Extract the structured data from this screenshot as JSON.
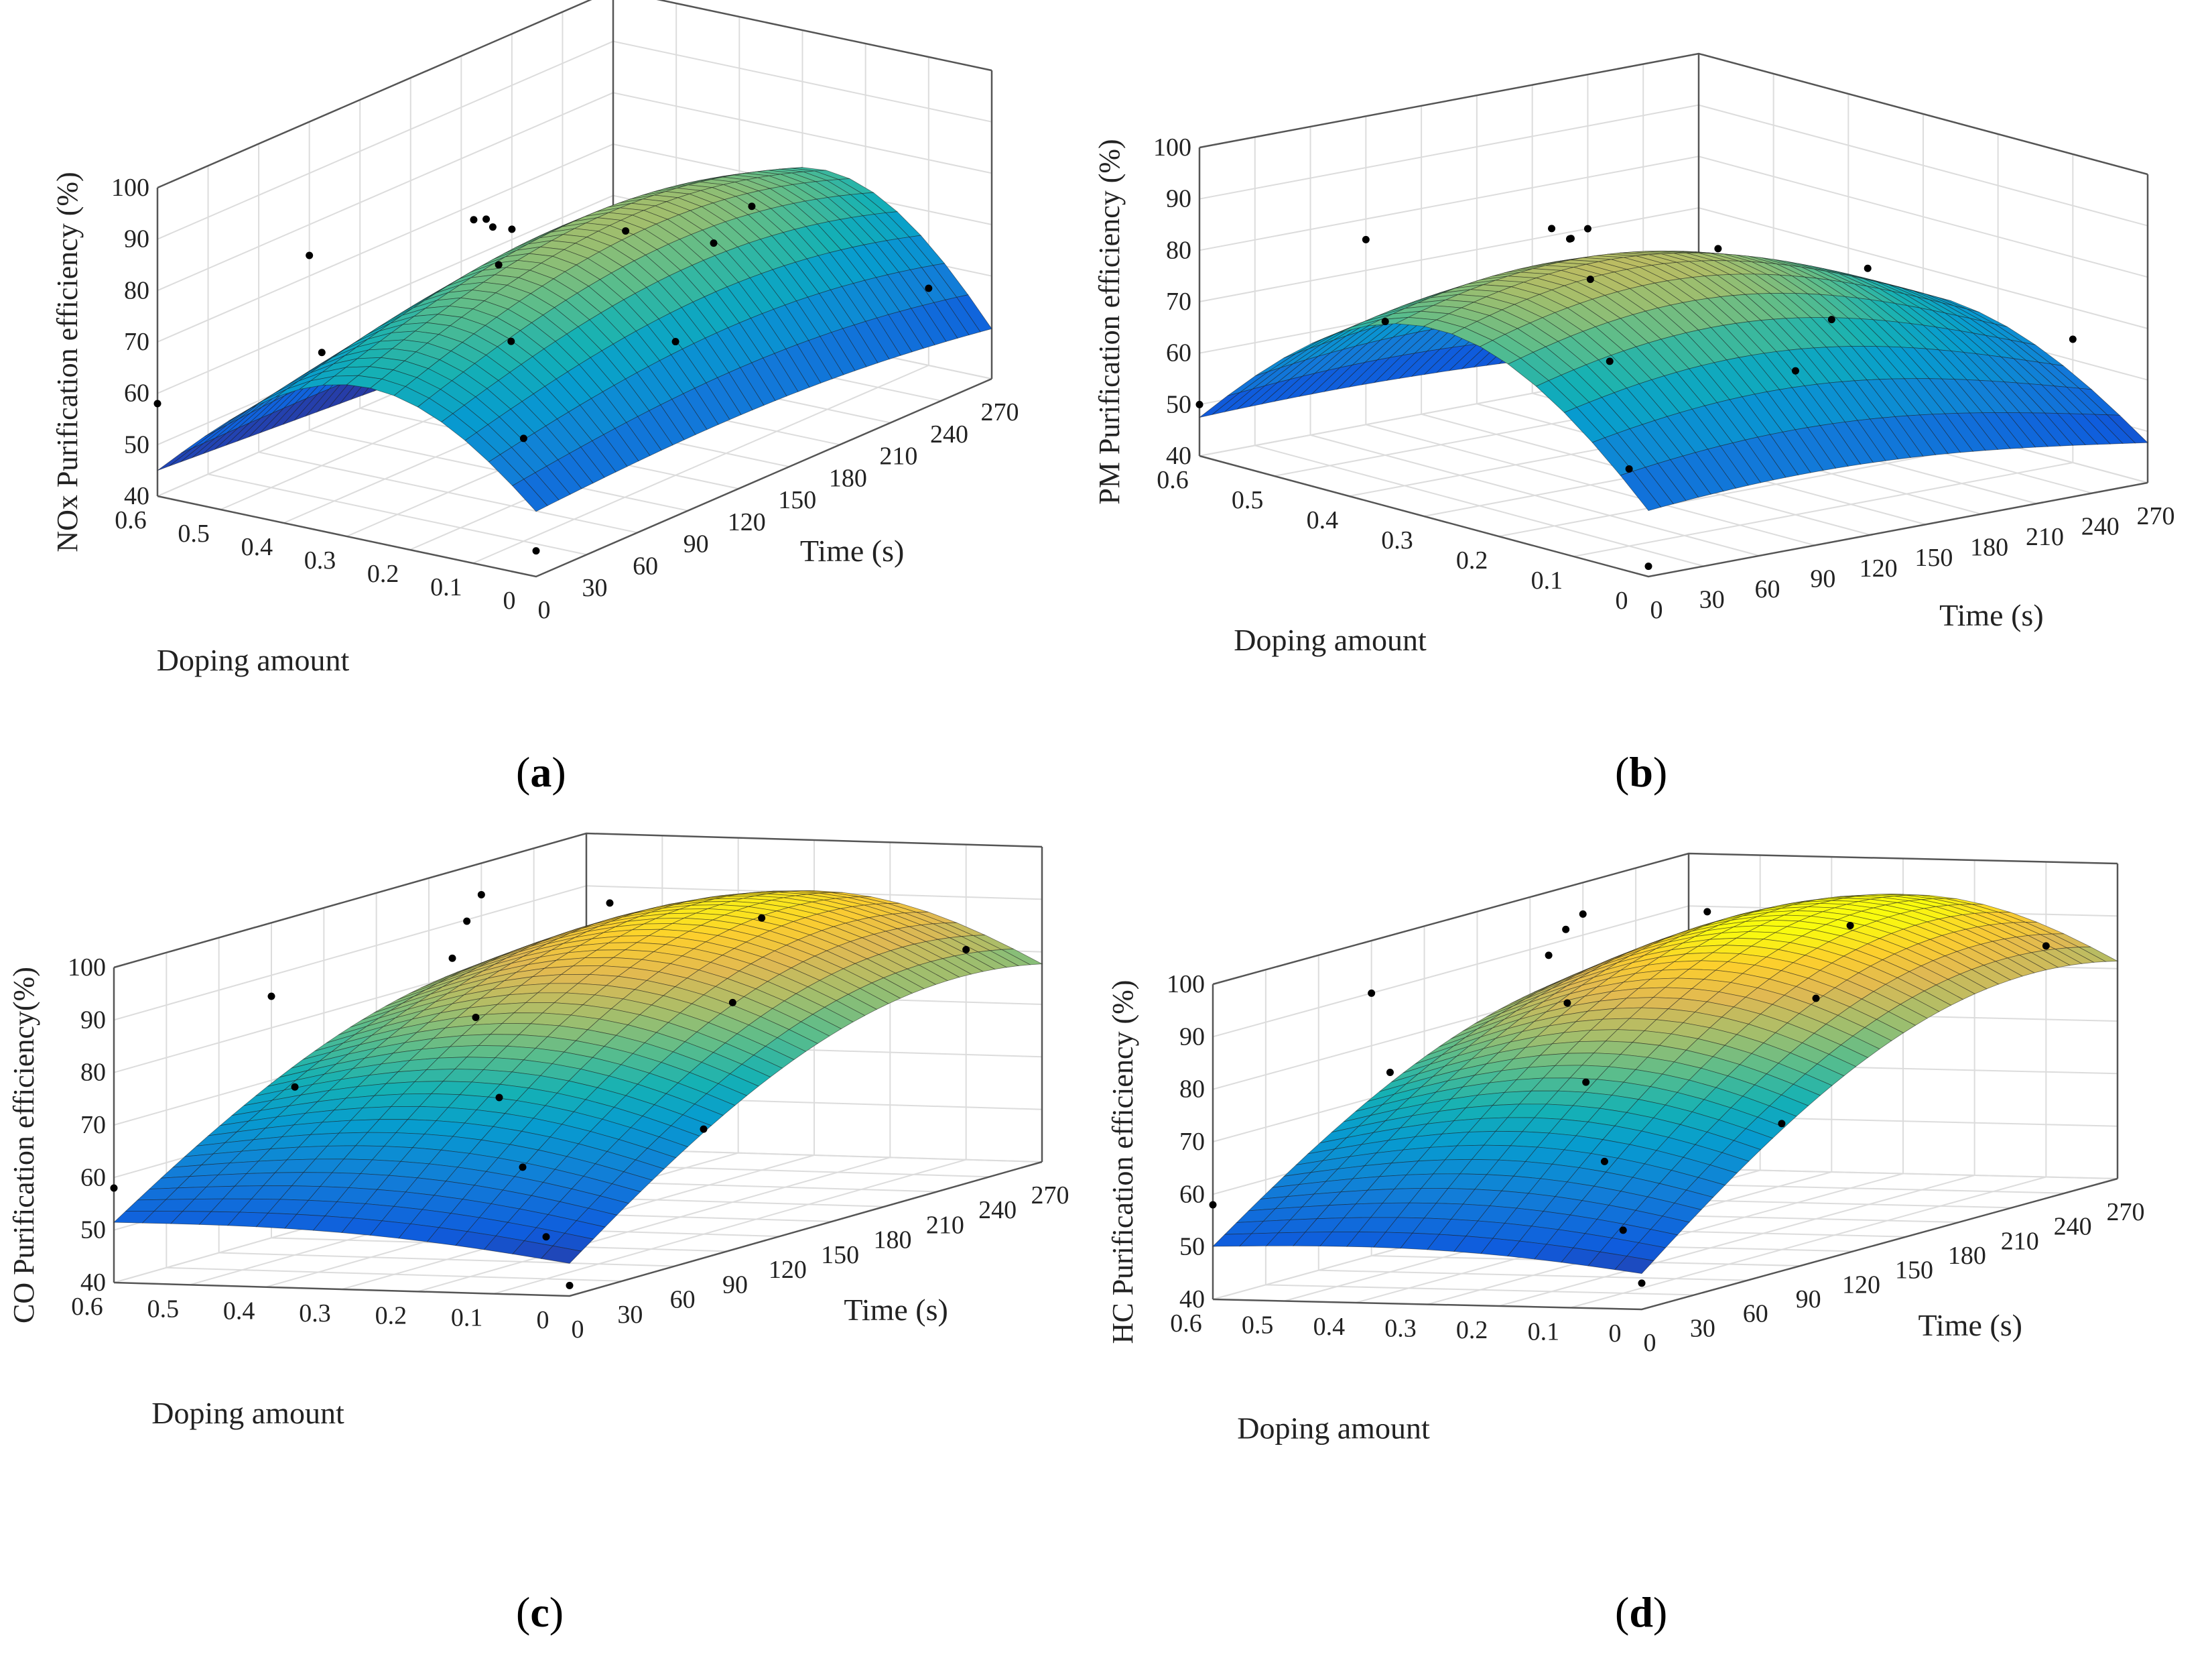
{
  "chart_data": [
    {
      "panel": "a",
      "type": "surface3d",
      "caption": "a",
      "zlabel": "NOx Purification efficiency (%)",
      "ylabel": "Doping amount",
      "xlabel": "Time (s)",
      "x_ticks": [
        "0",
        "30",
        "60",
        "90",
        "120",
        "150",
        "180",
        "210",
        "240",
        "270"
      ],
      "y_ticks": [
        "0",
        "0.1",
        "0.2",
        "0.3",
        "0.4",
        "0.5",
        "0.6"
      ],
      "z_ticks": [
        "40",
        "50",
        "60",
        "70",
        "80",
        "90",
        "100"
      ],
      "xlim": [
        0,
        270
      ],
      "ylim": [
        0,
        0.6
      ],
      "zlim": [
        40,
        100
      ],
      "surface": {
        "a": 60,
        "b": 0.09,
        "c": -0.0007,
        "d": 120,
        "e": -160,
        "f": 0.1
      },
      "points": [
        [
          0,
          0,
          45
        ],
        [
          30,
          0.1,
          60
        ],
        [
          60,
          0.2,
          72
        ],
        [
          90,
          0.3,
          80
        ],
        [
          120,
          0.4,
          82
        ],
        [
          150,
          0.5,
          75
        ],
        [
          180,
          0.55,
          68
        ],
        [
          210,
          0.6,
          62
        ],
        [
          240,
          0.3,
          70
        ],
        [
          270,
          0.1,
          55
        ],
        [
          60,
          0.5,
          62
        ],
        [
          120,
          0.1,
          66
        ],
        [
          180,
          0.2,
          74
        ],
        [
          240,
          0.5,
          60
        ],
        [
          0,
          0.6,
          58
        ],
        [
          90,
          0.6,
          74
        ]
      ]
    },
    {
      "panel": "b",
      "type": "surface3d",
      "caption": "b",
      "zlabel": "PM Purification efficiency (%)",
      "ylabel": "Doping amount",
      "xlabel": "Time (s)",
      "x_ticks": [
        "0",
        "30",
        "60",
        "90",
        "120",
        "150",
        "180",
        "210",
        "240",
        "270"
      ],
      "y_ticks": [
        "0",
        "0.1",
        "0.2",
        "0.3",
        "0.4",
        "0.5",
        "0.6"
      ],
      "z_ticks": [
        "40",
        "50",
        "60",
        "70",
        "80",
        "90",
        "100"
      ],
      "xlim": [
        0,
        270
      ],
      "ylim": [
        0,
        0.6
      ],
      "zlim": [
        40,
        100
      ],
      "surface": {
        "a": 45,
        "b": 0.2,
        "c": -0.0005,
        "d": 80,
        "e": -120,
        "f": 0.05
      },
      "points": [
        [
          0,
          0,
          42
        ],
        [
          30,
          0.1,
          55
        ],
        [
          60,
          0.2,
          70
        ],
        [
          90,
          0.3,
          80
        ],
        [
          120,
          0.4,
          82
        ],
        [
          150,
          0.5,
          78
        ],
        [
          180,
          0.55,
          72
        ],
        [
          210,
          0.6,
          70
        ],
        [
          240,
          0.3,
          72
        ],
        [
          270,
          0.1,
          64
        ],
        [
          60,
          0.5,
          66
        ],
        [
          120,
          0.1,
          68
        ],
        [
          180,
          0.2,
          70
        ],
        [
          240,
          0.5,
          68
        ],
        [
          0,
          0.6,
          50
        ],
        [
          90,
          0.6,
          76
        ]
      ]
    },
    {
      "panel": "c",
      "type": "surface3d",
      "caption": "c",
      "zlabel": "CO Purification efficiency(%)",
      "ylabel": "Doping amount",
      "xlabel": "Time (s)",
      "x_ticks": [
        "0",
        "30",
        "60",
        "90",
        "120",
        "150",
        "180",
        "210",
        "240",
        "270"
      ],
      "y_ticks": [
        "0",
        "0.1",
        "0.2",
        "0.3",
        "0.4",
        "0.5",
        "0.6"
      ],
      "z_ticks": [
        "40",
        "50",
        "60",
        "70",
        "80",
        "90",
        "100"
      ],
      "xlim": [
        0,
        270
      ],
      "ylim": [
        0,
        0.6
      ],
      "zlim": [
        40,
        100
      ],
      "surface": {
        "a": 40,
        "b": 0.3,
        "c": -0.0006,
        "d": 60,
        "e": -80,
        "f": 0.02
      },
      "points": [
        [
          0,
          0,
          42
        ],
        [
          30,
          0.1,
          48
        ],
        [
          60,
          0.2,
          58
        ],
        [
          90,
          0.3,
          68
        ],
        [
          120,
          0.4,
          80
        ],
        [
          150,
          0.5,
          88
        ],
        [
          180,
          0.55,
          92
        ],
        [
          210,
          0.6,
          94
        ],
        [
          240,
          0.3,
          88
        ],
        [
          270,
          0.1,
          80
        ],
        [
          60,
          0.5,
          72
        ],
        [
          120,
          0.1,
          60
        ],
        [
          180,
          0.2,
          78
        ],
        [
          240,
          0.5,
          90
        ],
        [
          0,
          0.6,
          58
        ],
        [
          90,
          0.6,
          86
        ]
      ]
    },
    {
      "panel": "d",
      "type": "surface3d",
      "caption": "d",
      "zlabel": "HC Purification efficiency (%)",
      "ylabel": "Doping amount",
      "xlabel": "Time (s)",
      "x_ticks": [
        "0",
        "30",
        "60",
        "90",
        "120",
        "150",
        "180",
        "210",
        "240",
        "270"
      ],
      "y_ticks": [
        "0",
        "0.1",
        "0.2",
        "0.3",
        "0.4",
        "0.5",
        "0.6"
      ],
      "z_ticks": [
        "40",
        "50",
        "60",
        "70",
        "80",
        "90",
        "100"
      ],
      "xlim": [
        0,
        270
      ],
      "ylim": [
        0,
        0.6
      ],
      "zlim": [
        40,
        100
      ],
      "surface": {
        "a": 42,
        "b": 0.38,
        "c": -0.0008,
        "d": 55,
        "e": -70,
        "f": 0.03
      },
      "points": [
        [
          0,
          0,
          45
        ],
        [
          30,
          0.1,
          52
        ],
        [
          60,
          0.2,
          62
        ],
        [
          90,
          0.3,
          74
        ],
        [
          120,
          0.4,
          86
        ],
        [
          150,
          0.5,
          92
        ],
        [
          180,
          0.55,
          94
        ],
        [
          210,
          0.6,
          94
        ],
        [
          240,
          0.3,
          90
        ],
        [
          270,
          0.1,
          84
        ],
        [
          60,
          0.5,
          78
        ],
        [
          120,
          0.1,
          64
        ],
        [
          180,
          0.2,
          82
        ],
        [
          240,
          0.5,
          92
        ],
        [
          0,
          0.6,
          58
        ],
        [
          90,
          0.6,
          90
        ]
      ]
    }
  ]
}
